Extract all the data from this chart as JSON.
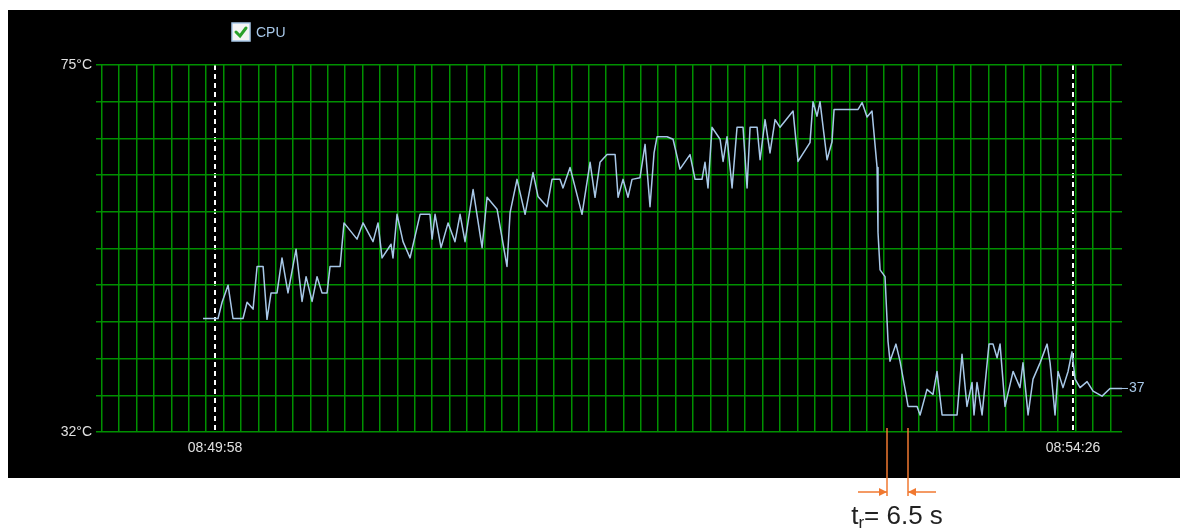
{
  "chart_data": {
    "type": "line",
    "legend": "top left",
    "grid": true,
    "marker": "none",
    "xlim": [
      8.8228,
      8.91147
    ],
    "ylim": [
      32,
      75
    ],
    "yticks": [
      {
        "value": 32,
        "label": "32°C"
      },
      {
        "value": 36.3,
        "label": null
      },
      {
        "value": 40.6,
        "label": null
      },
      {
        "value": 44.9,
        "label": null
      },
      {
        "value": 49.2,
        "label": null
      },
      {
        "value": 53.5,
        "label": null
      },
      {
        "value": 57.8,
        "label": null
      },
      {
        "value": 62.1,
        "label": null
      },
      {
        "value": 66.4,
        "label": null
      },
      {
        "value": 70.7,
        "label": null
      },
      {
        "value": 75,
        "label": "75°C"
      }
    ],
    "xticks": [
      {
        "value": 8.82295,
        "label": null
      },
      {
        "value": 8.82446,
        "label": null
      },
      {
        "value": 8.82597,
        "label": null
      },
      {
        "value": 8.82748,
        "label": null
      },
      {
        "value": 8.82899,
        "label": null
      },
      {
        "value": 8.83049,
        "label": null
      },
      {
        "value": 8.832,
        "label": null
      },
      {
        "value": 8.83278,
        "label": "08:49:58"
      },
      {
        "value": 8.83351,
        "label": null
      },
      {
        "value": 8.83502,
        "label": null
      },
      {
        "value": 8.83653,
        "label": null
      },
      {
        "value": 8.83804,
        "label": null
      },
      {
        "value": 8.83955,
        "label": null
      },
      {
        "value": 8.84106,
        "label": null
      },
      {
        "value": 8.84256,
        "label": null
      },
      {
        "value": 8.84407,
        "label": null
      },
      {
        "value": 8.84558,
        "label": null
      },
      {
        "value": 8.84709,
        "label": null
      },
      {
        "value": 8.8486,
        "label": null
      },
      {
        "value": 8.85011,
        "label": null
      },
      {
        "value": 8.85162,
        "label": null
      },
      {
        "value": 8.85313,
        "label": null
      },
      {
        "value": 8.85463,
        "label": null
      },
      {
        "value": 8.85614,
        "label": null
      },
      {
        "value": 8.85765,
        "label": null
      },
      {
        "value": 8.85916,
        "label": null
      },
      {
        "value": 8.86067,
        "label": null
      },
      {
        "value": 8.86218,
        "label": null
      },
      {
        "value": 8.86369,
        "label": null
      },
      {
        "value": 8.86519,
        "label": null
      },
      {
        "value": 8.8667,
        "label": null
      },
      {
        "value": 8.86821,
        "label": null
      },
      {
        "value": 8.86972,
        "label": null
      },
      {
        "value": 8.87123,
        "label": null
      },
      {
        "value": 8.87274,
        "label": null
      },
      {
        "value": 8.87425,
        "label": null
      },
      {
        "value": 8.87576,
        "label": null
      },
      {
        "value": 8.87726,
        "label": null
      },
      {
        "value": 8.87877,
        "label": null
      },
      {
        "value": 8.88028,
        "label": null
      },
      {
        "value": 8.88179,
        "label": null
      },
      {
        "value": 8.8833,
        "label": null
      },
      {
        "value": 8.88481,
        "label": null
      },
      {
        "value": 8.88632,
        "label": null
      },
      {
        "value": 8.88782,
        "label": null
      },
      {
        "value": 8.88933,
        "label": null
      },
      {
        "value": 8.89084,
        "label": null
      },
      {
        "value": 8.89235,
        "label": null
      },
      {
        "value": 8.89386,
        "label": null
      },
      {
        "value": 8.89537,
        "label": null
      },
      {
        "value": 8.89688,
        "label": null
      },
      {
        "value": 8.89839,
        "label": null
      },
      {
        "value": 8.89989,
        "label": null
      },
      {
        "value": 8.9014,
        "label": null
      },
      {
        "value": 8.90291,
        "label": null
      },
      {
        "value": 8.90442,
        "label": null
      },
      {
        "value": 8.90593,
        "label": null
      },
      {
        "value": 8.90722,
        "label": "08:54:26"
      },
      {
        "value": 8.90744,
        "label": null
      },
      {
        "value": 8.90895,
        "label": null
      },
      {
        "value": 8.91046,
        "label": null
      }
    ],
    "annotations": [
      "t$_{r}$= 6.5 s",
      {
        "text": "37",
        "x": 8.91147,
        "y": 37.1
      }
    ],
    "series": [
      {
        "name": "CPU",
        "color": "#a8c8e8",
        "x": [
          8.83174,
          8.83304,
          8.83339,
          8.83391,
          8.83434,
          8.83521,
          8.83556,
          8.83608,
          8.83643,
          8.83695,
          8.83729,
          8.83764,
          8.83816,
          8.83859,
          8.83911,
          8.83981,
          8.84033,
          8.84068,
          8.8412,
          8.84163,
          8.84206,
          8.8425,
          8.84276,
          8.84363,
          8.84397,
          8.8451,
          8.84562,
          8.84649,
          8.84692,
          8.84727,
          8.84805,
          8.84822,
          8.84857,
          8.84909,
          8.8497,
          8.85057,
          8.85143,
          8.85161,
          8.85187,
          8.85239,
          8.853,
          8.8536,
          8.85404,
          8.85447,
          8.85517,
          8.85595,
          8.85638,
          8.85725,
          8.85811,
          8.85838,
          8.85898,
          8.85968,
          8.86037,
          8.8608,
          8.86159,
          8.86202,
          8.86271,
          8.86297,
          8.86358,
          8.86462,
          8.86532,
          8.86575,
          8.86618,
          8.86679,
          8.86749,
          8.86775,
          8.86818,
          8.86861,
          8.86896,
          8.86965,
          8.87009,
          8.87052,
          8.87087,
          8.87113,
          8.872,
          8.87252,
          8.87312,
          8.87399,
          8.87443,
          8.87503,
          8.87529,
          8.87555,
          8.8759,
          8.8766,
          8.87686,
          8.8772,
          8.87764,
          8.87807,
          8.87859,
          8.87894,
          8.8792,
          8.87981,
          8.88007,
          8.8805,
          8.88093,
          8.88137,
          8.8818,
          8.88293,
          8.88336,
          8.8844,
          8.88466,
          8.88501,
          8.88527,
          8.88588,
          8.88631,
          8.88649,
          8.88857,
          8.88892,
          8.88935,
          8.88978,
          8.89022,
          8.8903,
          8.89048,
          8.89091,
          8.89117,
          8.89134,
          8.89186,
          8.89221,
          8.89273,
          8.89291,
          8.89369,
          8.89395,
          8.89455,
          8.89507,
          8.89542,
          8.89586,
          8.89716,
          8.89759,
          8.89802,
          8.89846,
          8.89863,
          8.89889,
          8.89933,
          8.89993,
          8.90028,
          8.90063,
          8.90089,
          8.90132,
          8.90202,
          8.90262,
          8.90288,
          8.90332,
          8.90375,
          8.90436,
          8.90497,
          8.90523,
          8.90566,
          8.90592,
          8.90635,
          8.90679,
          8.90713,
          8.9074,
          8.90783,
          8.90844,
          8.90896,
          8.90974,
          8.91043,
          8.91147
        ],
        "values": [
          45.3,
          45.3,
          47.2,
          49.2,
          45.3,
          45.3,
          47.2,
          46.4,
          51.4,
          51.4,
          45.2,
          48.3,
          48.3,
          52.4,
          48.3,
          53.4,
          47.3,
          50.2,
          47.3,
          50.2,
          48.3,
          48.3,
          51.4,
          51.4,
          56.5,
          54.6,
          56.5,
          54.3,
          56.5,
          52.4,
          54.0,
          52.4,
          57.5,
          54.3,
          52.4,
          57.5,
          57.5,
          54.6,
          57.5,
          53.6,
          56.5,
          54.3,
          57.5,
          54.3,
          60.4,
          53.6,
          59.5,
          58.1,
          51.4,
          57.7,
          61.6,
          57.5,
          62.4,
          59.6,
          58.4,
          61.6,
          61.6,
          60.6,
          63.0,
          57.5,
          63.6,
          59.5,
          63.6,
          64.5,
          64.5,
          59.5,
          61.6,
          59.5,
          61.6,
          61.8,
          65.7,
          58.4,
          64.7,
          66.6,
          66.6,
          66.3,
          62.8,
          64.5,
          61.6,
          61.6,
          63.6,
          60.6,
          67.7,
          66.3,
          63.7,
          66.6,
          60.6,
          67.7,
          67.7,
          60.6,
          67.7,
          67.7,
          63.9,
          68.6,
          64.7,
          68.6,
          67.7,
          69.6,
          63.7,
          65.9,
          70.7,
          69.0,
          70.7,
          63.9,
          66.0,
          69.8,
          69.8,
          70.6,
          68.9,
          69.6,
          63.0,
          55.4,
          51.0,
          50.2,
          42.6,
          40.3,
          42.3,
          40.3,
          36.4,
          35.0,
          35.0,
          34.0,
          37.0,
          36.4,
          39.1,
          34.0,
          34.0,
          41.1,
          35.0,
          37.8,
          34.0,
          37.8,
          34.0,
          42.3,
          42.3,
          40.7,
          42.3,
          35.0,
          39.1,
          37.2,
          40.1,
          34.0,
          38.2,
          40.1,
          42.3,
          40.1,
          34.0,
          39.1,
          37.2,
          39.1,
          41.4,
          38.2,
          37.2,
          37.9,
          36.8,
          36.2,
          37.1,
          37.1
        ]
      }
    ]
  }
}
